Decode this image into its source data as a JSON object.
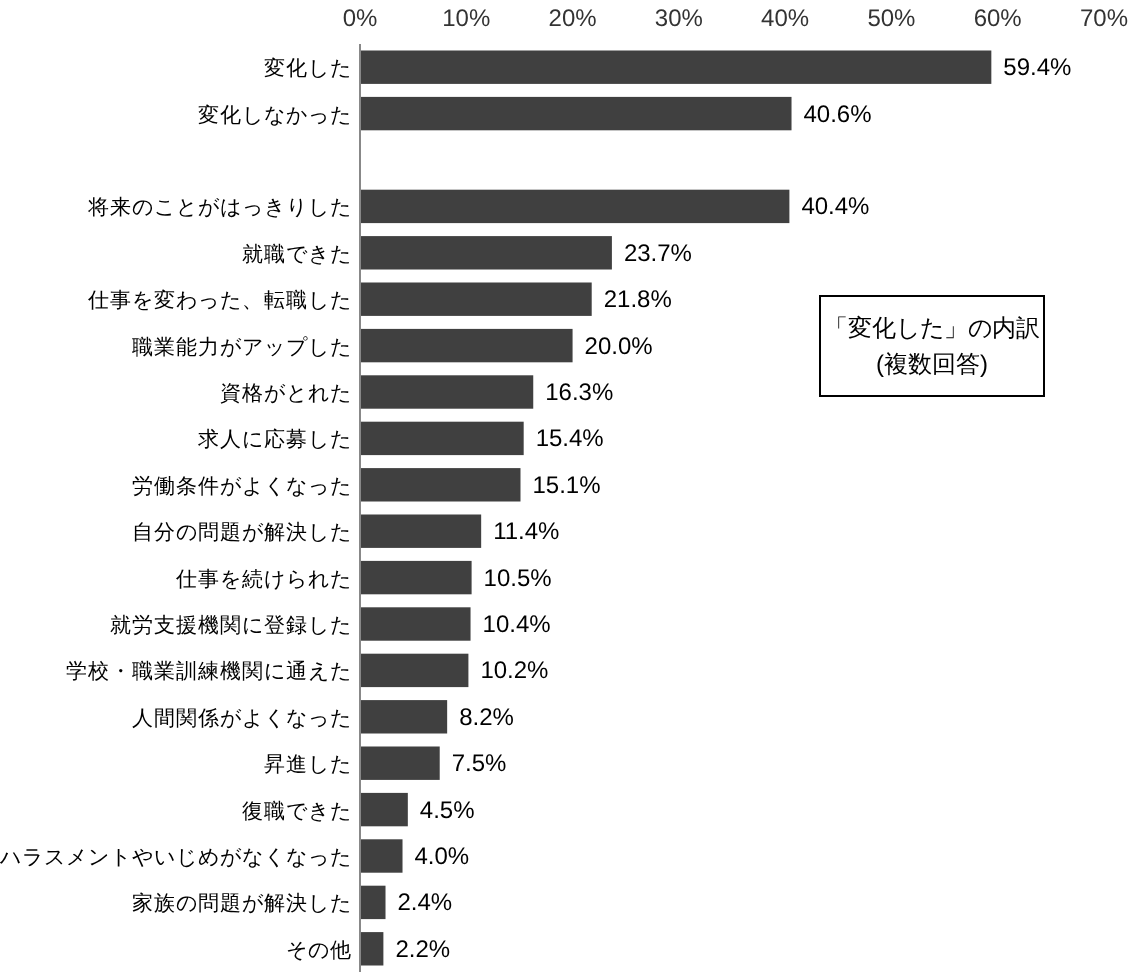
{
  "chart_data": {
    "type": "bar",
    "orientation": "horizontal",
    "categories": [
      "変化した",
      "変化しなかった",
      null,
      "将来のことがはっきりした",
      "就職できた",
      "仕事を変わった、転職した",
      "職業能力がアップした",
      "資格がとれた",
      "求人に応募した",
      "労働条件がよくなった",
      "自分の問題が解決した",
      "仕事を続けられた",
      "就労支援機関に登録した",
      "学校・職業訓練機関に通えた",
      "人間関係がよくなった",
      "昇進した",
      "復職できた",
      "ハラスメントやいじめがなくなった",
      "家族の問題が解決した",
      "その他"
    ],
    "values": [
      59.4,
      40.6,
      null,
      40.4,
      23.7,
      21.8,
      20.0,
      16.3,
      15.4,
      15.1,
      11.4,
      10.5,
      10.4,
      10.2,
      8.2,
      7.5,
      4.5,
      4.0,
      2.4,
      2.2
    ],
    "value_labels": [
      "59.4%",
      "40.6%",
      null,
      "40.4%",
      "23.7%",
      "21.8%",
      "20.0%",
      "16.3%",
      "15.4%",
      "15.1%",
      "11.4%",
      "10.5%",
      "10.4%",
      "10.2%",
      "8.2%",
      "7.5%",
      "4.5%",
      "4.0%",
      "2.4%",
      "2.2%"
    ],
    "color": "#404040",
    "xlim": [
      0,
      70
    ],
    "xticks": [
      {
        "value": 0,
        "label": "0%"
      },
      {
        "value": 10,
        "label": "10%"
      },
      {
        "value": 20,
        "label": "20%"
      },
      {
        "value": 30,
        "label": "30%"
      },
      {
        "value": 40,
        "label": "40%"
      },
      {
        "value": 50,
        "label": "50%"
      },
      {
        "value": 60,
        "label": "60%"
      },
      {
        "value": 70,
        "label": "70%"
      }
    ],
    "annotations": [
      "「変化した」の内訳\n(複数回答)"
    ],
    "grid": false
  }
}
